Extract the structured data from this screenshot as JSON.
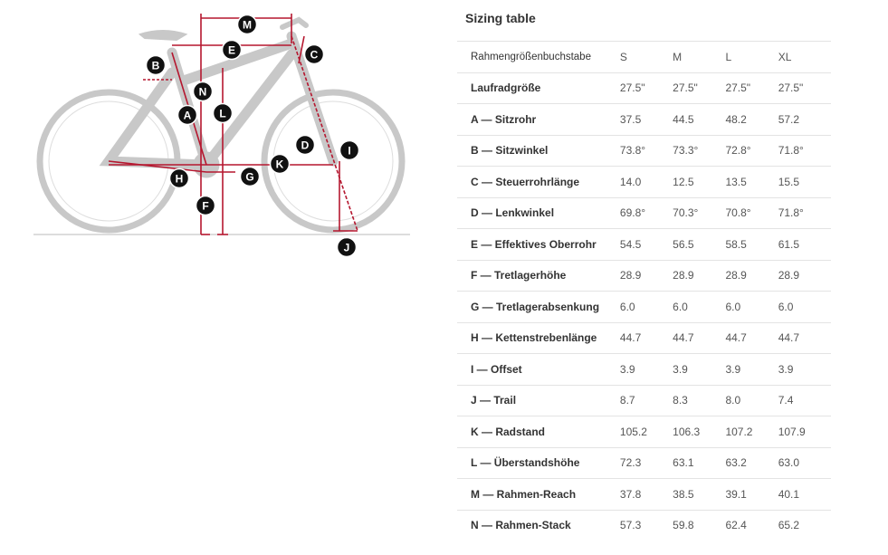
{
  "title": "Sizing table",
  "diagram": {
    "labels": [
      "M",
      "E",
      "C",
      "B",
      "N",
      "L",
      "A",
      "D",
      "I",
      "K",
      "H",
      "G",
      "F",
      "J"
    ],
    "colors": {
      "frame": "#c8c8c8",
      "dimension": "#b5172f",
      "badge": "#111111"
    }
  },
  "table": {
    "header": {
      "label": "Rahmengrößenbuchstabe",
      "sizes": [
        "S",
        "M",
        "L",
        "XL"
      ]
    },
    "rows": [
      {
        "label": "Laufradgröße",
        "values": [
          "27.5\"",
          "27.5\"",
          "27.5\"",
          "27.5\""
        ]
      },
      {
        "label": "A — Sitzrohr",
        "values": [
          "37.5",
          "44.5",
          "48.2",
          "57.2"
        ]
      },
      {
        "label": "B — Sitzwinkel",
        "values": [
          "73.8°",
          "73.3°",
          "72.8°",
          "71.8°"
        ]
      },
      {
        "label": "C — Steuerrohrlänge",
        "values": [
          "14.0",
          "12.5",
          "13.5",
          "15.5"
        ]
      },
      {
        "label": "D — Lenkwinkel",
        "values": [
          "69.8°",
          "70.3°",
          "70.8°",
          "71.8°"
        ]
      },
      {
        "label": "E — Effektives Oberrohr",
        "values": [
          "54.5",
          "56.5",
          "58.5",
          "61.5"
        ]
      },
      {
        "label": "F — Tretlagerhöhe",
        "values": [
          "28.9",
          "28.9",
          "28.9",
          "28.9"
        ]
      },
      {
        "label": "G — Tretlagerabsenkung",
        "values": [
          "6.0",
          "6.0",
          "6.0",
          "6.0"
        ]
      },
      {
        "label": "H — Kettenstrebenlänge",
        "values": [
          "44.7",
          "44.7",
          "44.7",
          "44.7"
        ]
      },
      {
        "label": "I — Offset",
        "values": [
          "3.9",
          "3.9",
          "3.9",
          "3.9"
        ]
      },
      {
        "label": "J — Trail",
        "values": [
          "8.7",
          "8.3",
          "8.0",
          "7.4"
        ]
      },
      {
        "label": "K — Radstand",
        "values": [
          "105.2",
          "106.3",
          "107.2",
          "107.9"
        ]
      },
      {
        "label": "L — Überstandshöhe",
        "values": [
          "72.3",
          "63.1",
          "63.2",
          "63.0"
        ]
      },
      {
        "label": "M — Rahmen-Reach",
        "values": [
          "37.8",
          "38.5",
          "39.1",
          "40.1"
        ]
      },
      {
        "label": "N — Rahmen-Stack",
        "values": [
          "57.3",
          "59.8",
          "62.4",
          "65.2"
        ]
      }
    ]
  }
}
